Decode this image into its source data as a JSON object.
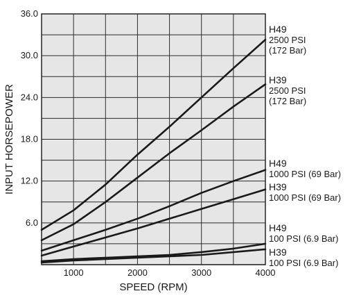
{
  "chart_data": {
    "type": "line",
    "title": "",
    "xlabel": "SPEED (RPM)",
    "ylabel": "INPUT HORSEPOWER",
    "xlim": [
      500,
      4000
    ],
    "ylim": [
      0,
      36
    ],
    "x_ticks": [
      1000,
      2000,
      3000,
      4000
    ],
    "x_tick_labels": [
      "1000",
      "2000",
      "3000",
      "4000"
    ],
    "x_grid": [
      500,
      1000,
      1500,
      2000,
      2500,
      3000,
      3500,
      4000
    ],
    "y_ticks": [
      6,
      12,
      18,
      24,
      30,
      36
    ],
    "y_tick_labels": [
      "6.0",
      "12.0",
      "18.0",
      "24.0",
      "30.0",
      "36.0"
    ],
    "y_grid": [
      3,
      6,
      9,
      12,
      15,
      18,
      21,
      24,
      27,
      30,
      33,
      36
    ],
    "grid": true,
    "colors": {
      "line": "#1a1a1a",
      "panel": "#e6e6e6",
      "grid": "#2a2a2a"
    },
    "series": [
      {
        "model": "H49",
        "pressure": "2500 PSI",
        "pressure_bar": "(172 Bar)",
        "x": [
          500,
          1000,
          1500,
          2000,
          2500,
          3000,
          3500,
          4000
        ],
        "y": [
          5.0,
          7.8,
          11.5,
          15.8,
          19.8,
          24.0,
          28.2,
          32.3
        ]
      },
      {
        "model": "H39",
        "pressure": "2500 PSI",
        "pressure_bar": "(172 Bar)",
        "x": [
          500,
          1000,
          1500,
          2000,
          2500,
          3000,
          3500,
          4000
        ],
        "y": [
          3.5,
          5.8,
          9.0,
          12.5,
          16.0,
          19.3,
          22.7,
          25.9
        ]
      },
      {
        "model": "H49",
        "pressure": "1000 PSI (69 Bar)",
        "x": [
          500,
          1000,
          1500,
          2000,
          2500,
          3000,
          3500,
          4000
        ],
        "y": [
          2.0,
          3.5,
          5.0,
          6.6,
          8.4,
          10.3,
          12.0,
          13.6
        ]
      },
      {
        "model": "H39",
        "pressure": "1000 PSI (69 Bar)",
        "x": [
          500,
          1000,
          1500,
          2000,
          2500,
          3000,
          3500,
          4000
        ],
        "y": [
          1.3,
          2.6,
          3.9,
          5.2,
          6.6,
          8.0,
          9.4,
          10.8
        ]
      },
      {
        "model": "H49",
        "pressure": "100 PSI (6.9 Bar)",
        "x": [
          500,
          1000,
          1500,
          2000,
          2500,
          3000,
          3500,
          4000
        ],
        "y": [
          0.5,
          0.8,
          1.0,
          1.2,
          1.4,
          1.8,
          2.3,
          3.0
        ]
      },
      {
        "model": "H39",
        "pressure": "100 PSI (6.9 Bar)",
        "x": [
          500,
          1000,
          1500,
          2000,
          2500,
          3000,
          3500,
          4000
        ],
        "y": [
          0.3,
          0.6,
          0.8,
          1.0,
          1.2,
          1.4,
          1.8,
          2.2
        ]
      }
    ]
  }
}
